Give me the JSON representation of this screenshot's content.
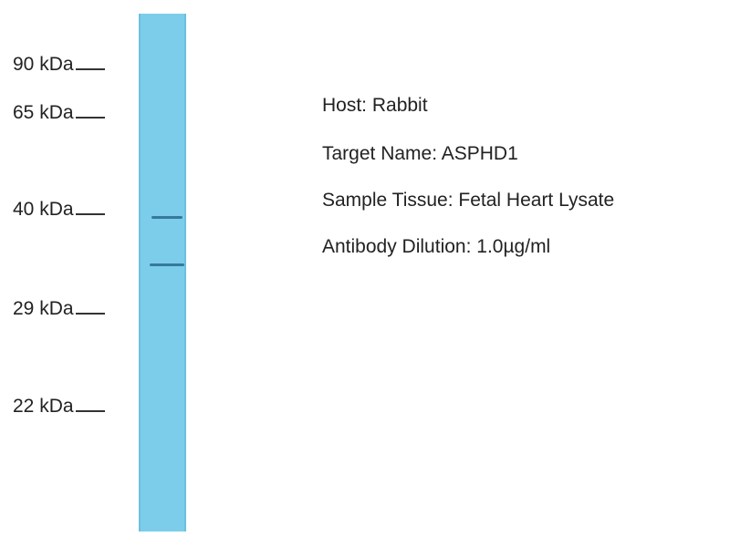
{
  "markers": [
    {
      "label": "90 kDa"
    },
    {
      "label": "65 kDa"
    },
    {
      "label": "40 kDa"
    },
    {
      "label": "29 kDa"
    },
    {
      "label": "22 kDa"
    }
  ],
  "lane_color": "#7ccdea",
  "band_color": "#2f6f98",
  "bands_count": 2,
  "info": {
    "host": "Host: Rabbit",
    "target": "Target Name: ASPHD1",
    "tissue": "Sample Tissue: Fetal Heart Lysate",
    "dilution": "Antibody Dilution: 1.0µg/ml"
  }
}
